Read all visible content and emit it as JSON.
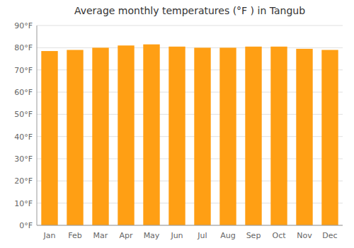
{
  "chart_data": {
    "type": "bar",
    "title": "Average monthly temperatures (°F ) in Tangub",
    "categories": [
      "Jan",
      "Feb",
      "Mar",
      "Apr",
      "May",
      "Jun",
      "Jul",
      "Aug",
      "Sep",
      "Oct",
      "Nov",
      "Dec"
    ],
    "values": [
      78.5,
      79.0,
      80.0,
      81.0,
      81.5,
      80.5,
      80.0,
      80.0,
      80.5,
      80.5,
      79.5,
      79.0
    ],
    "color": "#ff9f14",
    "ylim": [
      0,
      90
    ],
    "yticks": [
      {
        "value": 0,
        "label": "0°F"
      },
      {
        "value": 10,
        "label": "10°F"
      },
      {
        "value": 20,
        "label": "20°F"
      },
      {
        "value": 30,
        "label": "30°F"
      },
      {
        "value": 40,
        "label": "40°F"
      },
      {
        "value": 50,
        "label": "50°F"
      },
      {
        "value": 60,
        "label": "60°F"
      },
      {
        "value": 70,
        "label": "70°F"
      },
      {
        "value": 80,
        "label": "80°F"
      },
      {
        "value": 90,
        "label": "90°F"
      }
    ],
    "grid": true
  }
}
